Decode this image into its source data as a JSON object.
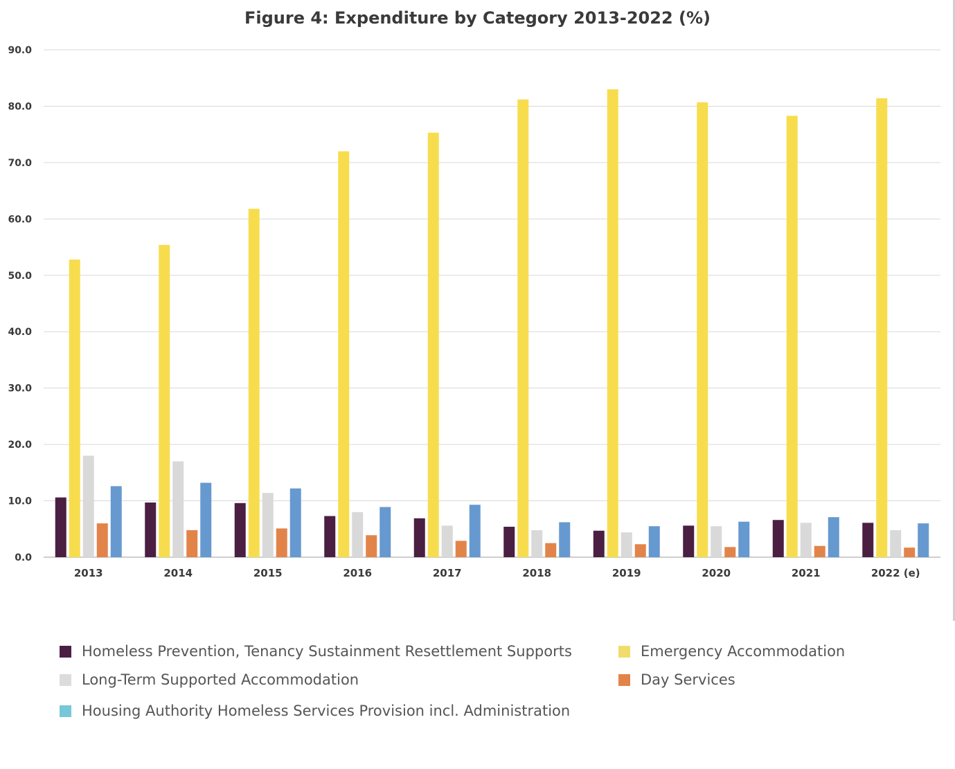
{
  "chart_data": {
    "type": "bar",
    "title": "Figure 4: Expenditure by Category 2013-2022 (%)",
    "xlabel": "",
    "ylabel": "",
    "ylim": [
      0,
      90
    ],
    "yticks": [
      "0.0",
      "10.0",
      "20.0",
      "30.0",
      "40.0",
      "50.0",
      "60.0",
      "70.0",
      "80.0",
      "90.0"
    ],
    "grid": true,
    "legend_position": "bottom",
    "categories": [
      "2013",
      "2014",
      "2015",
      "2016",
      "2017",
      "2018",
      "2019",
      "2020",
      "2021",
      "2022 (e)"
    ],
    "series": [
      {
        "name": "Homeless Prevention, Tenancy Sustainment Resettlement Supports",
        "color": "#4a1f42",
        "values": [
          10.6,
          9.7,
          9.6,
          7.3,
          6.9,
          5.4,
          4.7,
          5.6,
          6.6,
          6.1
        ]
      },
      {
        "name": "Emergency Accommodation",
        "color": "#f7dd4e",
        "values": [
          52.8,
          55.4,
          61.8,
          72.0,
          75.3,
          81.2,
          83.0,
          80.7,
          78.3,
          81.4
        ]
      },
      {
        "name": "Long-Term Supported Accommodation",
        "color": "#d9d9d9",
        "values": [
          18.0,
          17.0,
          11.4,
          8.0,
          5.6,
          4.8,
          4.4,
          5.5,
          6.1,
          4.8
        ]
      },
      {
        "name": "Day Services",
        "color": "#e2844a",
        "values": [
          6.0,
          4.8,
          5.1,
          3.9,
          2.9,
          2.5,
          2.3,
          1.8,
          2.0,
          1.7
        ]
      },
      {
        "name": "Housing Authority Homeless Services Provision incl. Administration",
        "color": "#6699cf",
        "values": [
          12.6,
          13.2,
          12.2,
          8.9,
          9.3,
          6.2,
          5.5,
          6.3,
          7.1,
          6.0
        ]
      }
    ],
    "legend": [
      {
        "label": "Homeless Prevention, Tenancy Sustainment Resettlement Supports",
        "color": "#4a1f42"
      },
      {
        "label": "Emergency Accommodation",
        "color": "#f0dc6b"
      },
      {
        "label": "Long-Term Supported Accommodation",
        "color": "#dcdcdc"
      },
      {
        "label": "Day Services",
        "color": "#e2844a"
      },
      {
        "label": "Housing Authority Homeless Services Provision incl. Administration",
        "color": "#76c8d8"
      }
    ]
  }
}
